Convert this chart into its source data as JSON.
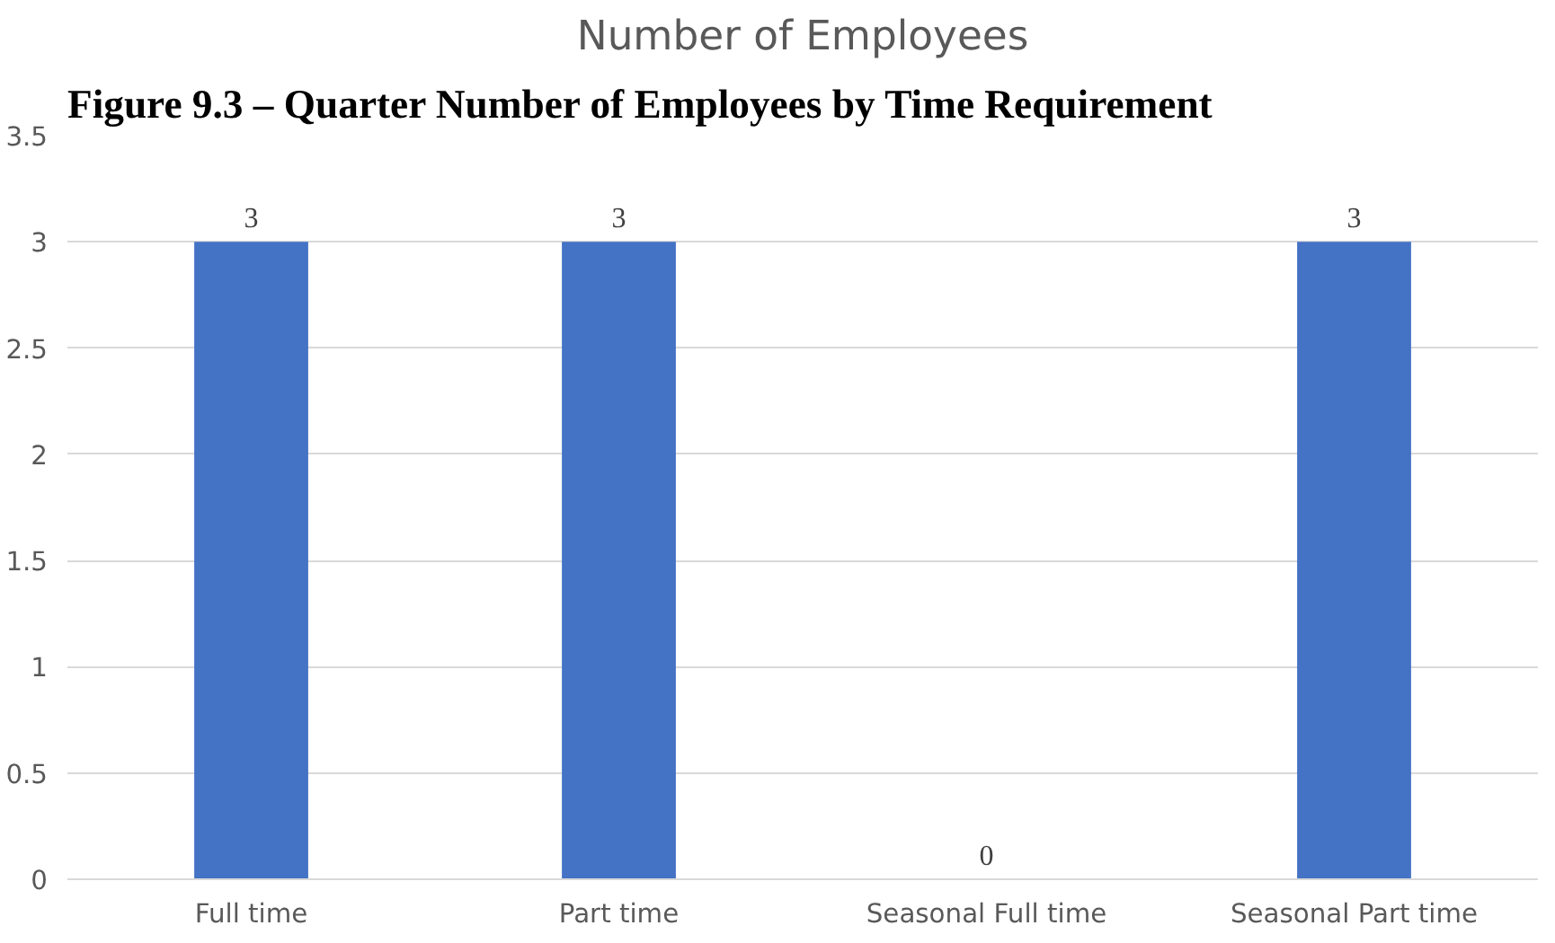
{
  "chart_data": {
    "type": "bar",
    "title": "Number of Employees",
    "annotations": [
      "Figure 9.3 – Quarter Number of Employees by Time Requirement"
    ],
    "categories": [
      "Full time",
      "Part time",
      "Seasonal Full time",
      "Seasonal Part time"
    ],
    "values": [
      3,
      3,
      0,
      3
    ],
    "color": "#4472c4",
    "ylim": [
      0,
      3.5
    ],
    "yticks": [
      0,
      0.5,
      1,
      1.5,
      2,
      2.5,
      3,
      3.5
    ],
    "grid": "y",
    "data_labels": true
  }
}
